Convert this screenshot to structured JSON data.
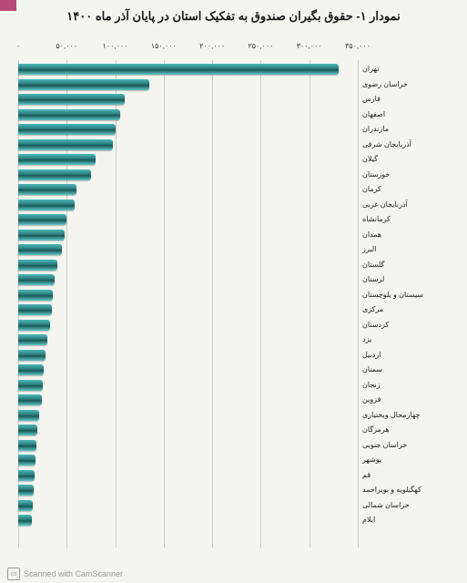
{
  "title": "نمودار ۱- حقوق بگیران صندوق به تفکیک استان در پایان آذر ماه ۱۴۰۰",
  "footer_text": "Scanned with CamScanner",
  "chart": {
    "type": "bar-horizontal",
    "background_color": "#f5f5f0",
    "bar_gradient": [
      "#4db8b8",
      "#2a7a7a",
      "#1a5555",
      "#5dc8c8"
    ],
    "grid_color": "#cccccc",
    "title_fontsize": 13,
    "label_fontsize": 8,
    "tick_fontsize": 8,
    "xmax": 350000,
    "xtick_step": 50000,
    "xticks": [
      "۰",
      "۵۰,۰۰۰",
      "۱۰۰,۰۰۰",
      "۱۵۰,۰۰۰",
      "۲۰۰,۰۰۰",
      "۲۵۰,۰۰۰",
      "۳۰۰,۰۰۰",
      "۳۵۰,۰۰۰"
    ],
    "categories": [
      "تهران",
      "خراسان رضوی",
      "فارس",
      "اصفهان",
      "مازندران",
      "آذربایجان شرقی",
      "گیلان",
      "خوزستان",
      "کرمان",
      "آذربایجان غربی",
      "کرمانشاه",
      "همدان",
      "البرز",
      "گلستان",
      "لرستان",
      "سیستان و بلوچستان",
      "مرکزی",
      "کردستان",
      "یزد",
      "اردبیل",
      "سمنان",
      "زنجان",
      "قزوین",
      "چهارمحال وبختیاری",
      "هرمزگان",
      "خراسان جنوبی",
      "بوشهر",
      "قم",
      "کهگیلویه و بویراحمد",
      "خراسان شمالی",
      "ایلام"
    ],
    "values": [
      330000,
      135000,
      110000,
      105000,
      100000,
      98000,
      80000,
      75000,
      60000,
      58000,
      50000,
      48000,
      45000,
      40000,
      38000,
      36000,
      35000,
      33000,
      30000,
      28000,
      26000,
      25000,
      24000,
      22000,
      20000,
      19000,
      18000,
      17000,
      16000,
      15000,
      14000
    ]
  }
}
